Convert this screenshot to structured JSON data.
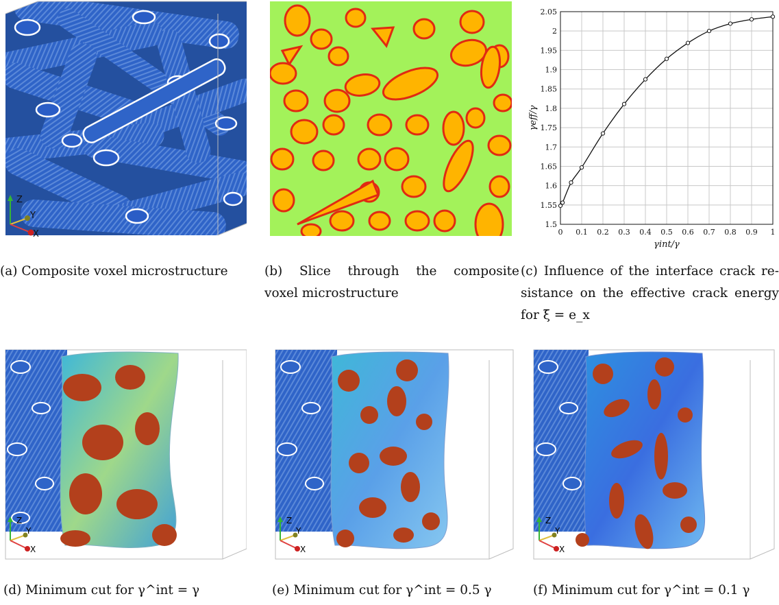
{
  "figure": {
    "panels": {
      "a": {
        "caption": "(a) Composite voxel microstructure",
        "axes": {
          "z": "Z",
          "y": "Y",
          "x": "X"
        }
      },
      "b": {
        "caption_line1": "(b) Slice through the composite",
        "caption_line2": "voxel microstructure"
      },
      "c": {
        "caption_line1": "(c) Influence of the interface crack re-",
        "caption_line2": "sistance on the effective crack energy",
        "caption_line3": "for ξ̄ = e_x"
      },
      "d": {
        "caption": "(d) Minimum cut for γ^int = γ",
        "axes": {
          "z": "Z",
          "y": "Y",
          "x": "X"
        }
      },
      "e": {
        "caption": "(e) Minimum cut for γ^int = 0.5 γ",
        "axes": {
          "z": "Z",
          "y": "Y",
          "x": "X"
        }
      },
      "f": {
        "caption": "(f) Minimum cut for γ^int = 0.1 γ",
        "axes": {
          "z": "Z",
          "y": "Y",
          "x": "X"
        }
      }
    },
    "colors": {
      "fiber_blue": "#2f64c8",
      "matrix_green": "#a3f25a",
      "fiber_orange": "#ffb400",
      "interface_red": "#e02a12",
      "crack_brown": "#b3401c",
      "crack_cyan": "#3fb7d8"
    }
  },
  "chart_data": {
    "type": "line",
    "xlabel": "γint/γ",
    "ylabel": "γeff/γ",
    "xlim": [
      0,
      1
    ],
    "ylim": [
      1.5,
      2.05
    ],
    "xticks": [
      "0",
      "0.1",
      "0.2",
      "0.3",
      "0.4",
      "0.5",
      "0.6",
      "0.7",
      "0.8",
      "0.9",
      "1"
    ],
    "yticks": [
      "1.5",
      "1.55",
      "1.6",
      "1.65",
      "1.7",
      "1.75",
      "1.8",
      "1.85",
      "1.9",
      "1.95",
      "2",
      "2.05"
    ],
    "grid": true,
    "series": [
      {
        "x": [
          0,
          0.01,
          0.05,
          0.1,
          0.2,
          0.3,
          0.4,
          0.5,
          0.6,
          0.7,
          0.8,
          0.9,
          1.0
        ],
        "y": [
          1.548,
          1.556,
          1.608,
          1.647,
          1.735,
          1.811,
          1.875,
          1.928,
          1.969,
          2.0,
          2.019,
          2.03,
          2.037
        ]
      }
    ]
  }
}
